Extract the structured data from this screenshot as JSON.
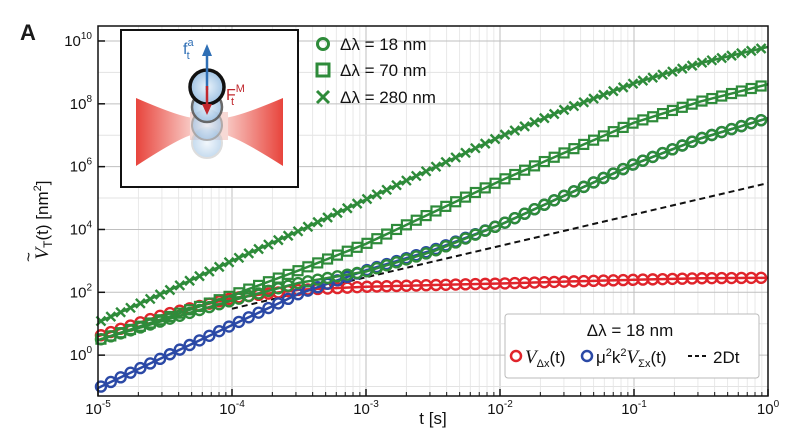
{
  "chart_data": {
    "type": "scatter",
    "panel_letter": "A",
    "xlabel": "t [s]",
    "ylabel_main": "V",
    "ylabel_tilde": "~",
    "ylabel_sub": "T",
    "ylabel_rest": "(t) [nm",
    "ylabel_exp": "2",
    "ylabel_close": "]",
    "x_scale": "log",
    "y_scale": "log",
    "xlim": [
      1e-05,
      1
    ],
    "ylim": [
      0.05,
      30000000000
    ],
    "x_ticks": [
      {
        "value": 1e-05,
        "base": "10",
        "exp": "-5"
      },
      {
        "value": 0.0001,
        "base": "10",
        "exp": "-4"
      },
      {
        "value": 0.001,
        "base": "10",
        "exp": "-3"
      },
      {
        "value": 0.01,
        "base": "10",
        "exp": "-2"
      },
      {
        "value": 0.1,
        "base": "10",
        "exp": "-1"
      },
      {
        "value": 1,
        "base": "10",
        "exp": "0"
      }
    ],
    "y_ticks": [
      {
        "value": 1,
        "base": "10",
        "exp": "0"
      },
      {
        "value": 100,
        "base": "10",
        "exp": "2"
      },
      {
        "value": 10000,
        "base": "10",
        "exp": "4"
      },
      {
        "value": 1000000,
        "base": "10",
        "exp": "6"
      },
      {
        "value": 100000000,
        "base": "10",
        "exp": "8"
      },
      {
        "value": 10000000000,
        "base": "10",
        "exp": "10"
      }
    ],
    "grid": true,
    "legend_top": {
      "placement": "top",
      "entries": [
        {
          "label": "Δλ = 18 nm",
          "marker": "circle",
          "color": "#2e8b3a"
        },
        {
          "label": "Δλ = 70 nm",
          "marker": "square",
          "color": "#2e8b3a"
        },
        {
          "label": "Δλ = 280 nm",
          "marker": "x",
          "color": "#2e8b3a"
        }
      ]
    },
    "legend_bottom": {
      "placement": "bottom-right",
      "title": "Δλ = 18 nm",
      "entries": [
        {
          "main": "V",
          "sub": "Δx",
          "rest": "(t)",
          "marker": "circle",
          "color": "#e0242b"
        },
        {
          "main": "μ",
          "exp1": "2",
          "mid": "k",
          "exp2": "2",
          "v": "V",
          "sub": "Σx",
          "rest": "(t)",
          "marker": "circle",
          "color": "#2b49a6"
        },
        {
          "main": "2Dt",
          "marker": "dashed",
          "color": "#111111"
        }
      ]
    },
    "inset": {
      "label_f_main": "f",
      "label_f_sub": "t",
      "label_f_sup": "a",
      "label_F_main": "F",
      "label_F_sub": "t",
      "label_F_sup": "M",
      "arrow_color": "#2f6fb5",
      "force_color": "#c0272d",
      "beam_color": "#e8443c"
    },
    "series": [
      {
        "name": "Δλ = 18 nm",
        "marker": "circle",
        "color": "#2e8b3a",
        "x": [
          1e-05,
          3.16e-05,
          0.0001,
          0.000316,
          0.001,
          0.00316,
          0.01,
          0.0316,
          0.1,
          0.316,
          1
        ],
        "y": [
          3,
          13,
          55,
          200,
          460,
          2000,
          14000,
          130000,
          1200000,
          8000000,
          35000000
        ]
      },
      {
        "name": "Δλ = 70 nm",
        "marker": "square",
        "color": "#2e8b3a",
        "x": [
          1e-05,
          3.16e-05,
          0.0001,
          0.000316,
          0.001,
          0.00316,
          0.01,
          0.0316,
          0.1,
          0.316,
          1
        ],
        "y": [
          3,
          15,
          80,
          500,
          3500,
          35000,
          350000,
          3000000,
          25000000,
          120000000,
          420000000
        ]
      },
      {
        "name": "Δλ = 280 nm",
        "marker": "x",
        "color": "#2e8b3a",
        "x": [
          1e-05,
          3.16e-05,
          0.0001,
          0.000316,
          0.001,
          0.00316,
          0.01,
          0.0316,
          0.1,
          0.316,
          1
        ],
        "y": [
          11,
          100,
          1000,
          9000,
          90000,
          900000,
          9000000,
          70000000,
          450000000,
          2000000000,
          6500000000
        ]
      },
      {
        "name": "VΔx(t)",
        "marker": "circle",
        "color": "#e0242b",
        "x": [
          1e-05,
          3.16e-05,
          0.0001,
          0.000316,
          0.001,
          0.00316,
          0.01,
          0.0316,
          0.1,
          0.316,
          1
        ],
        "y": [
          4,
          20,
          65,
          120,
          150,
          170,
          190,
          220,
          250,
          280,
          290
        ]
      },
      {
        "name": "μ²k²VΣx(t)",
        "marker": "circle",
        "color": "#2b49a6",
        "x": [
          1e-05,
          3.16e-05,
          0.0001,
          0.000316,
          0.001,
          0.00316,
          0.01,
          0.0316,
          0.1,
          0.316,
          1
        ],
        "y": [
          0.09,
          0.9,
          9,
          90,
          500,
          2200,
          14000,
          130000,
          1200000,
          8000000,
          35000000
        ]
      },
      {
        "name": "2Dt",
        "marker": "dashed",
        "color": "#111111",
        "x": [
          0.0001,
          1
        ],
        "y": [
          30,
          300000
        ]
      }
    ]
  }
}
